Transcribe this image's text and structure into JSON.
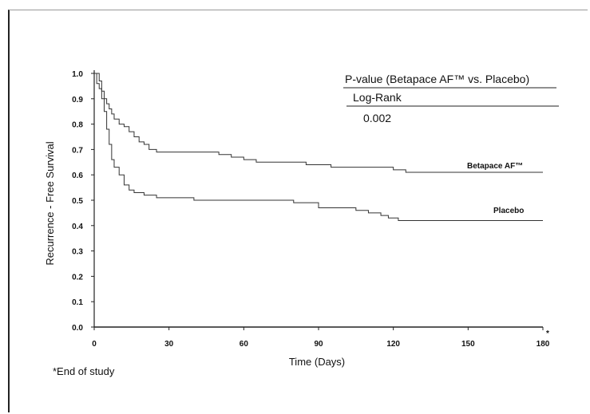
{
  "chart_data": {
    "type": "line",
    "step": true,
    "xlabel": "Time  (Days)",
    "ylabel": "Recurrence - Free Survival",
    "xlim": [
      0,
      180
    ],
    "ylim": [
      0,
      1.0
    ],
    "xticks": [
      "0",
      "30",
      "60",
      "90",
      "120",
      "150",
      "180"
    ],
    "yticks": [
      "0.0",
      "0.1",
      "0.2",
      "0.3",
      "0.4",
      "0.5",
      "0.6",
      "0.7",
      "0.8",
      "0.9",
      "1.0"
    ],
    "x_end_marker": "*",
    "series": [
      {
        "name": "Betapace AF™",
        "x": [
          0,
          2,
          3,
          4,
          5,
          6,
          7,
          8,
          10,
          12,
          14,
          16,
          18,
          20,
          22,
          25,
          40,
          50,
          55,
          60,
          65,
          80,
          85,
          95,
          100,
          120,
          125,
          180
        ],
        "y": [
          1.0,
          0.97,
          0.93,
          0.9,
          0.88,
          0.86,
          0.84,
          0.82,
          0.8,
          0.79,
          0.77,
          0.75,
          0.73,
          0.72,
          0.7,
          0.69,
          0.69,
          0.68,
          0.67,
          0.66,
          0.65,
          0.65,
          0.64,
          0.63,
          0.63,
          0.62,
          0.61,
          0.61
        ]
      },
      {
        "name": "Placebo",
        "x": [
          0,
          1,
          2,
          3,
          4,
          5,
          6,
          7,
          8,
          10,
          12,
          14,
          16,
          20,
          25,
          40,
          80,
          90,
          105,
          110,
          115,
          118,
          122,
          180
        ],
        "y": [
          1.0,
          0.96,
          0.94,
          0.9,
          0.85,
          0.78,
          0.72,
          0.66,
          0.63,
          0.6,
          0.56,
          0.54,
          0.53,
          0.52,
          0.51,
          0.5,
          0.49,
          0.47,
          0.46,
          0.45,
          0.44,
          0.43,
          0.42,
          0.42
        ]
      }
    ],
    "annotations": {
      "pvalue_title": "P-value (Betapace AF™ vs. Placebo)",
      "test": "Log-Rank",
      "pvalue": "0.002",
      "footnote": "*End of study"
    }
  }
}
